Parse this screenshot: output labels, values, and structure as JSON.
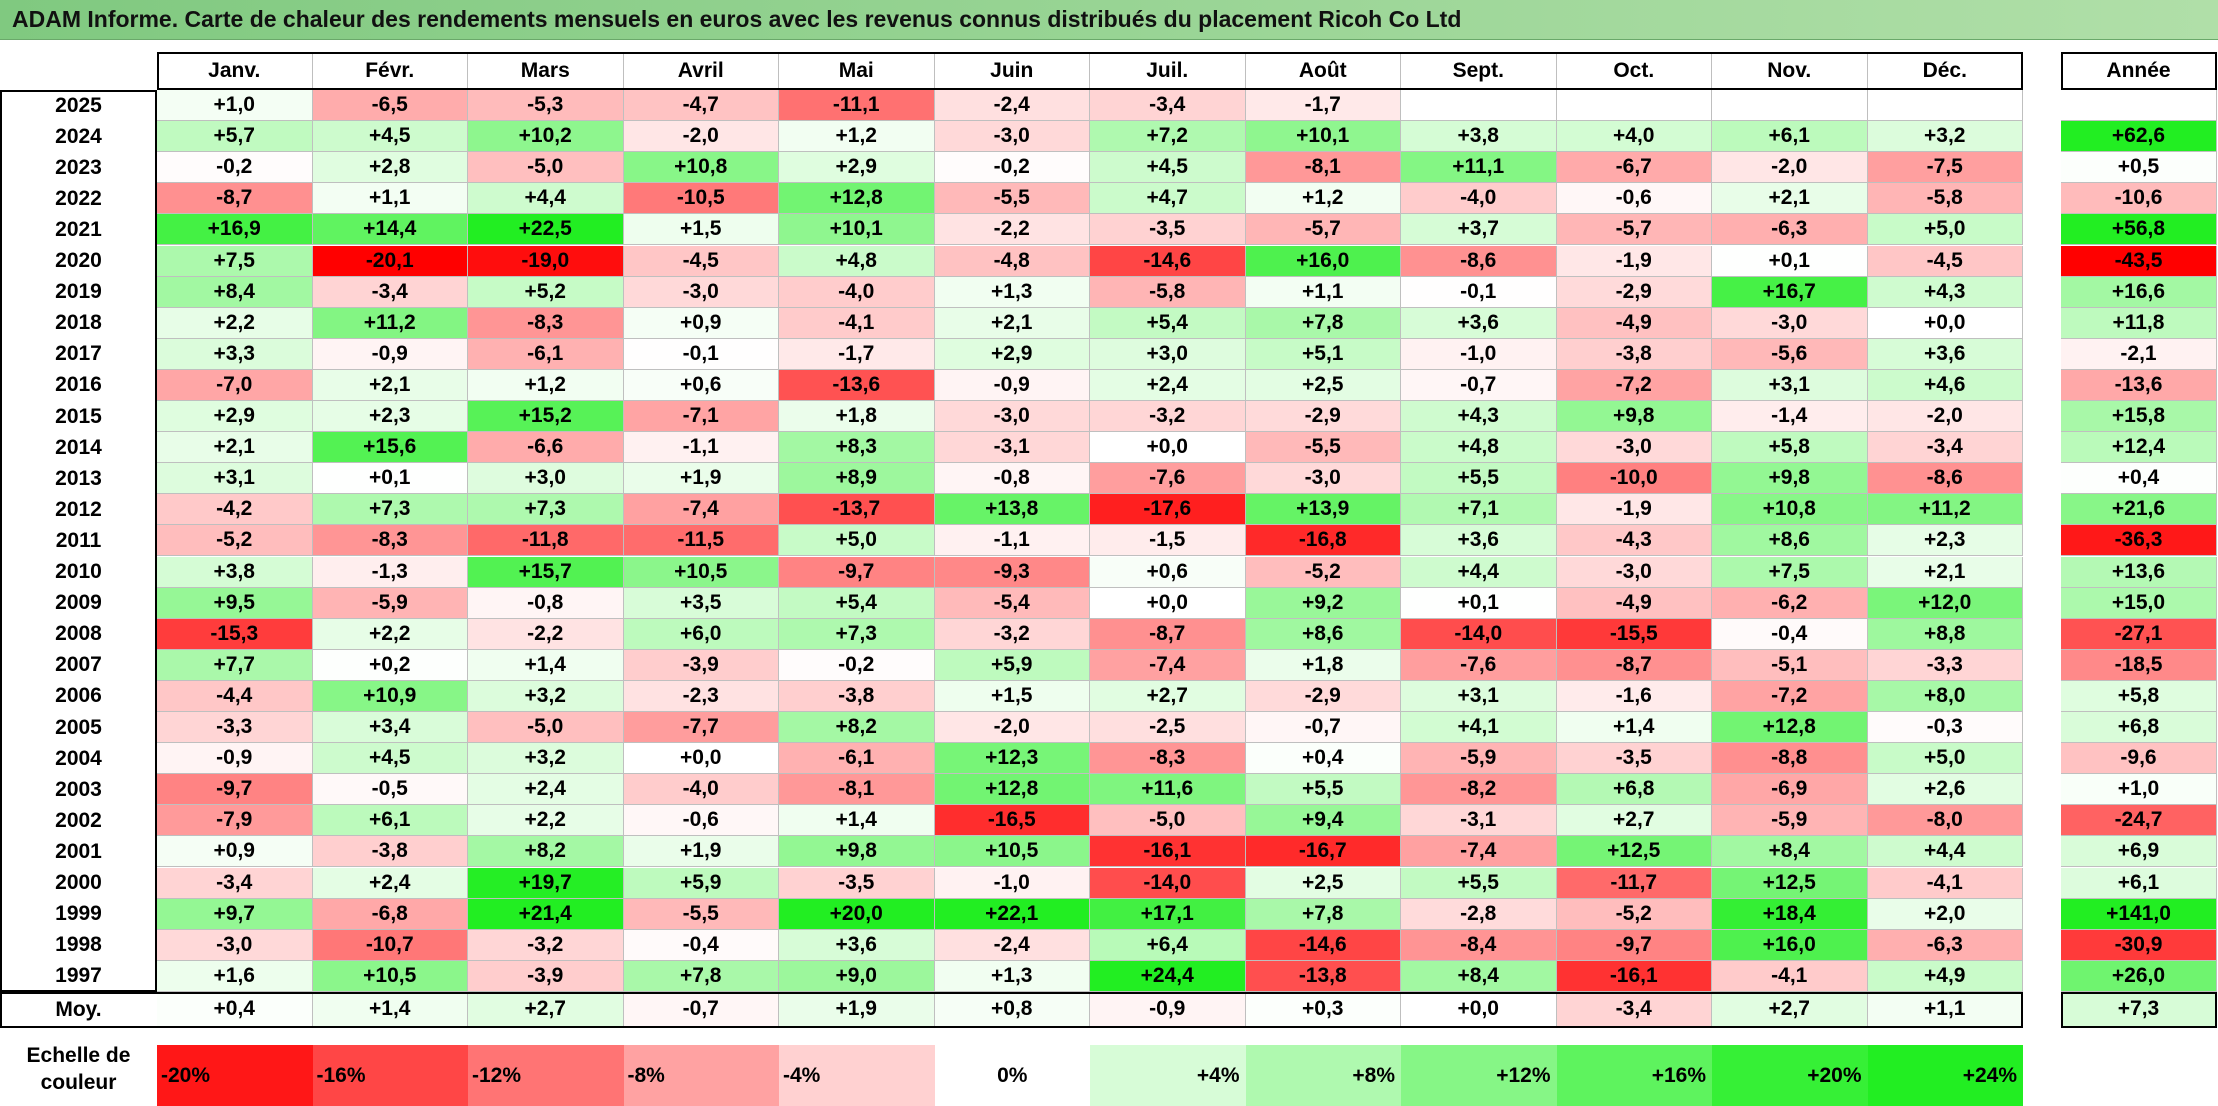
{
  "title": "ADAM Informe. Carte de chaleur des rendements mensuels en euros avec les revenus connus distribués du placement Ricoh Co Ltd",
  "annual_label": "Année",
  "avg_label": "Moy.",
  "legend_label_line1": "Echelle de",
  "legend_label_line2": "couleur",
  "colors": {
    "neg_max": "#ff0000",
    "pos_max": "#22ee22",
    "neutral": "#ffffff"
  },
  "chart_data": {
    "type": "heatmap",
    "months": [
      "Janv.",
      "Févr.",
      "Mars",
      "Avril",
      "Mai",
      "Juin",
      "Juil.",
      "Août",
      "Sept.",
      "Oct.",
      "Nov.",
      "Déc."
    ],
    "rows": [
      {
        "year": "2025",
        "values": [
          "+1,0",
          "-6,5",
          "-5,3",
          "-4,7",
          "-11,1",
          "-2,4",
          "-3,4",
          "-1,7",
          "",
          "",
          "",
          ""
        ],
        "annual": ""
      },
      {
        "year": "2024",
        "values": [
          "+5,7",
          "+4,5",
          "+10,2",
          "-2,0",
          "+1,2",
          "-3,0",
          "+7,2",
          "+10,1",
          "+3,8",
          "+4,0",
          "+6,1",
          "+3,2"
        ],
        "annual": "+62,6"
      },
      {
        "year": "2023",
        "values": [
          "-0,2",
          "+2,8",
          "-5,0",
          "+10,8",
          "+2,9",
          "-0,2",
          "+4,5",
          "-8,1",
          "+11,1",
          "-6,7",
          "-2,0",
          "-7,5"
        ],
        "annual": "+0,5"
      },
      {
        "year": "2022",
        "values": [
          "-8,7",
          "+1,1",
          "+4,4",
          "-10,5",
          "+12,8",
          "-5,5",
          "+4,7",
          "+1,2",
          "-4,0",
          "-0,6",
          "+2,1",
          "-5,8"
        ],
        "annual": "-10,6"
      },
      {
        "year": "2021",
        "values": [
          "+16,9",
          "+14,4",
          "+22,5",
          "+1,5",
          "+10,1",
          "-2,2",
          "-3,5",
          "-5,7",
          "+3,7",
          "-5,7",
          "-6,3",
          "+5,0"
        ],
        "annual": "+56,8"
      },
      {
        "year": "2020",
        "values": [
          "+7,5",
          "-20,1",
          "-19,0",
          "-4,5",
          "+4,8",
          "-4,8",
          "-14,6",
          "+16,0",
          "-8,6",
          "-1,9",
          "+0,1",
          "-4,5"
        ],
        "annual": "-43,5"
      },
      {
        "year": "2019",
        "values": [
          "+8,4",
          "-3,4",
          "+5,2",
          "-3,0",
          "-4,0",
          "+1,3",
          "-5,8",
          "+1,1",
          "-0,1",
          "-2,9",
          "+16,7",
          "+4,3"
        ],
        "annual": "+16,6"
      },
      {
        "year": "2018",
        "values": [
          "+2,2",
          "+11,2",
          "-8,3",
          "+0,9",
          "-4,1",
          "+2,1",
          "+5,4",
          "+7,8",
          "+3,6",
          "-4,9",
          "-3,0",
          "+0,0"
        ],
        "annual": "+11,8"
      },
      {
        "year": "2017",
        "values": [
          "+3,3",
          "-0,9",
          "-6,1",
          "-0,1",
          "-1,7",
          "+2,9",
          "+3,0",
          "+5,1",
          "-1,0",
          "-3,8",
          "-5,6",
          "+3,6"
        ],
        "annual": "-2,1"
      },
      {
        "year": "2016",
        "values": [
          "-7,0",
          "+2,1",
          "+1,2",
          "+0,6",
          "-13,6",
          "-0,9",
          "+2,4",
          "+2,5",
          "-0,7",
          "-7,2",
          "+3,1",
          "+4,6"
        ],
        "annual": "-13,6"
      },
      {
        "year": "2015",
        "values": [
          "+2,9",
          "+2,3",
          "+15,2",
          "-7,1",
          "+1,8",
          "-3,0",
          "-3,2",
          "-2,9",
          "+4,3",
          "+9,8",
          "-1,4",
          "-2,0"
        ],
        "annual": "+15,8"
      },
      {
        "year": "2014",
        "values": [
          "+2,1",
          "+15,6",
          "-6,6",
          "-1,1",
          "+8,3",
          "-3,1",
          "+0,0",
          "-5,5",
          "+4,8",
          "-3,0",
          "+5,8",
          "-3,4"
        ],
        "annual": "+12,4"
      },
      {
        "year": "2013",
        "values": [
          "+3,1",
          "+0,1",
          "+3,0",
          "+1,9",
          "+8,9",
          "-0,8",
          "-7,6",
          "-3,0",
          "+5,5",
          "-10,0",
          "+9,8",
          "-8,6"
        ],
        "annual": "+0,4"
      },
      {
        "year": "2012",
        "values": [
          "-4,2",
          "+7,3",
          "+7,3",
          "-7,4",
          "-13,7",
          "+13,8",
          "-17,6",
          "+13,9",
          "+7,1",
          "-1,9",
          "+10,8",
          "+11,2"
        ],
        "annual": "+21,6"
      },
      {
        "year": "2011",
        "values": [
          "-5,2",
          "-8,3",
          "-11,8",
          "-11,5",
          "+5,0",
          "-1,1",
          "-1,5",
          "-16,8",
          "+3,6",
          "-4,3",
          "+8,6",
          "+2,3"
        ],
        "annual": "-36,3"
      },
      {
        "year": "2010",
        "values": [
          "+3,8",
          "-1,3",
          "+15,7",
          "+10,5",
          "-9,7",
          "-9,3",
          "+0,6",
          "-5,2",
          "+4,4",
          "-3,0",
          "+7,5",
          "+2,1"
        ],
        "annual": "+13,6"
      },
      {
        "year": "2009",
        "values": [
          "+9,5",
          "-5,9",
          "-0,8",
          "+3,5",
          "+5,4",
          "-5,4",
          "+0,0",
          "+9,2",
          "+0,1",
          "-4,9",
          "-6,2",
          "+12,0"
        ],
        "annual": "+15,0"
      },
      {
        "year": "2008",
        "values": [
          "-15,3",
          "+2,2",
          "-2,2",
          "+6,0",
          "+7,3",
          "-3,2",
          "-8,7",
          "+8,6",
          "-14,0",
          "-15,5",
          "-0,4",
          "+8,8"
        ],
        "annual": "-27,1"
      },
      {
        "year": "2007",
        "values": [
          "+7,7",
          "+0,2",
          "+1,4",
          "-3,9",
          "-0,2",
          "+5,9",
          "-7,4",
          "+1,8",
          "-7,6",
          "-8,7",
          "-5,1",
          "-3,3"
        ],
        "annual": "-18,5"
      },
      {
        "year": "2006",
        "values": [
          "-4,4",
          "+10,9",
          "+3,2",
          "-2,3",
          "-3,8",
          "+1,5",
          "+2,7",
          "-2,9",
          "+3,1",
          "-1,6",
          "-7,2",
          "+8,0"
        ],
        "annual": "+5,8"
      },
      {
        "year": "2005",
        "values": [
          "-3,3",
          "+3,4",
          "-5,0",
          "-7,7",
          "+8,2",
          "-2,0",
          "-2,5",
          "-0,7",
          "+4,1",
          "+1,4",
          "+12,8",
          "-0,3"
        ],
        "annual": "+6,8"
      },
      {
        "year": "2004",
        "values": [
          "-0,9",
          "+4,5",
          "+3,2",
          "+0,0",
          "-6,1",
          "+12,3",
          "-8,3",
          "+0,4",
          "-5,9",
          "-3,5",
          "-8,8",
          "+5,0"
        ],
        "annual": "-9,6"
      },
      {
        "year": "2003",
        "values": [
          "-9,7",
          "-0,5",
          "+2,4",
          "-4,0",
          "-8,1",
          "+12,8",
          "+11,6",
          "+5,5",
          "-8,2",
          "+6,8",
          "-6,9",
          "+2,6"
        ],
        "annual": "+1,0"
      },
      {
        "year": "2002",
        "values": [
          "-7,9",
          "+6,1",
          "+2,2",
          "-0,6",
          "+1,4",
          "-16,5",
          "-5,0",
          "+9,4",
          "-3,1",
          "+2,7",
          "-5,9",
          "-8,0"
        ],
        "annual": "-24,7"
      },
      {
        "year": "2001",
        "values": [
          "+0,9",
          "-3,8",
          "+8,2",
          "+1,9",
          "+9,8",
          "+10,5",
          "-16,1",
          "-16,7",
          "-7,4",
          "+12,5",
          "+8,4",
          "+4,4"
        ],
        "annual": "+6,9"
      },
      {
        "year": "2000",
        "values": [
          "-3,4",
          "+2,4",
          "+19,7",
          "+5,9",
          "-3,5",
          "-1,0",
          "-14,0",
          "+2,5",
          "+5,5",
          "-11,7",
          "+12,5",
          "-4,1"
        ],
        "annual": "+6,1"
      },
      {
        "year": "1999",
        "values": [
          "+9,7",
          "-6,8",
          "+21,4",
          "-5,5",
          "+20,0",
          "+22,1",
          "+17,1",
          "+7,8",
          "-2,8",
          "-5,2",
          "+18,4",
          "+2,0"
        ],
        "annual": "+141,0"
      },
      {
        "year": "1998",
        "values": [
          "-3,0",
          "-10,7",
          "-3,2",
          "-0,4",
          "+3,6",
          "-2,4",
          "+6,4",
          "-14,6",
          "-8,4",
          "-9,7",
          "+16,0",
          "-6,3"
        ],
        "annual": "-30,9"
      },
      {
        "year": "1997",
        "values": [
          "+1,6",
          "+10,5",
          "-3,9",
          "+7,8",
          "+9,0",
          "+1,3",
          "+24,4",
          "-13,8",
          "+8,4",
          "-16,1",
          "-4,1",
          "+4,9"
        ],
        "annual": "+26,0"
      }
    ],
    "averages": [
      "+0,4",
      "+1,4",
      "+2,7",
      "-0,7",
      "+1,9",
      "+0,8",
      "-0,9",
      "+0,3",
      "+0,0",
      "-3,4",
      "+2,7",
      "+1,1"
    ],
    "average_annual": "+7,3",
    "legend": [
      "-20%",
      "-16%",
      "-12%",
      "-8%",
      "-4%",
      "0%",
      "+4%",
      "+8%",
      "+12%",
      "+16%",
      "+20%",
      "+24%"
    ]
  }
}
